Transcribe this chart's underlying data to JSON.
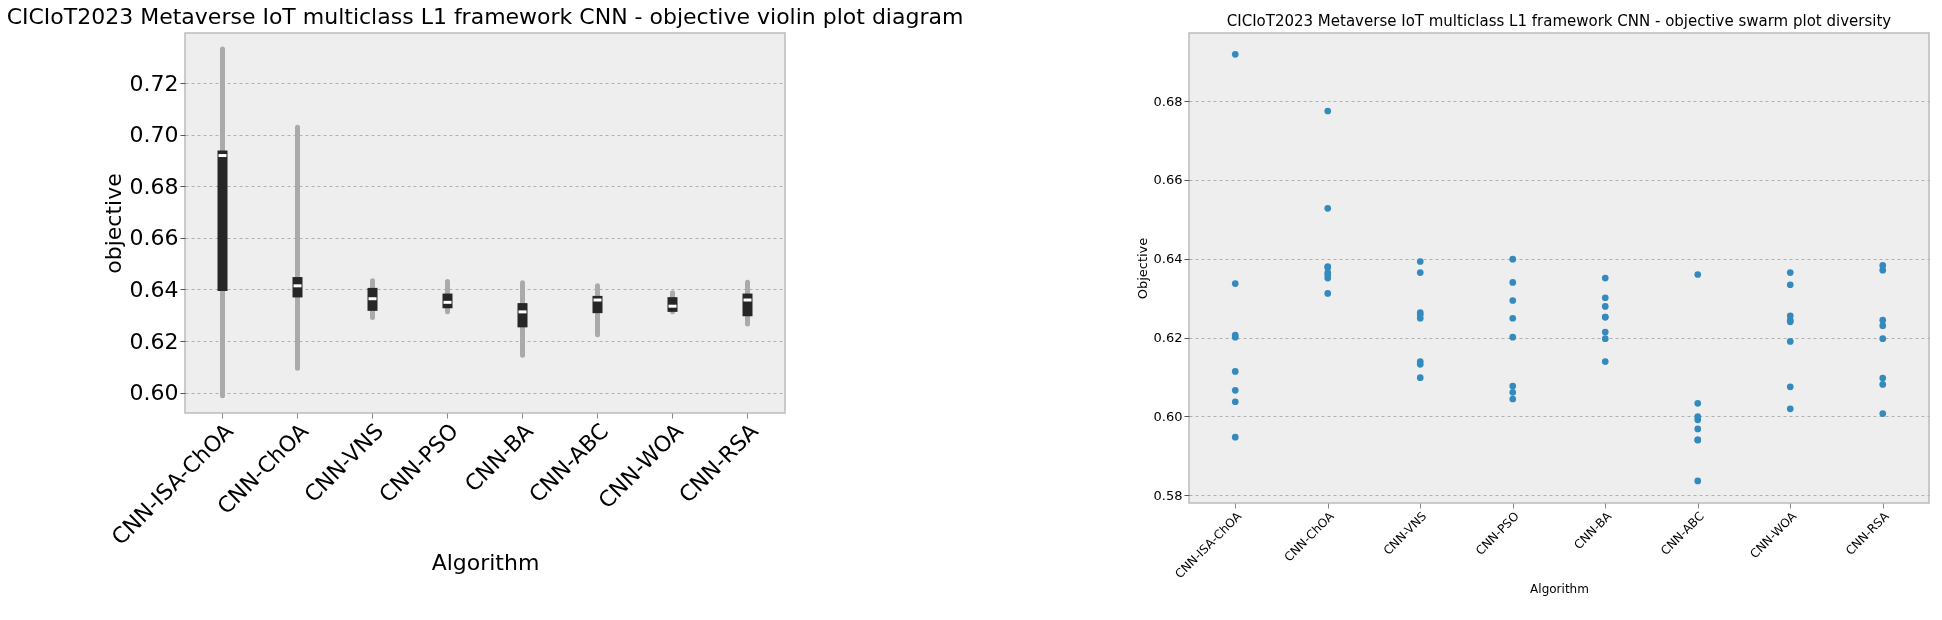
{
  "chart_data": [
    {
      "type": "box",
      "title": "CICIoT2023 Metaverse IoT multiclass L1 framework CNN - objective violin plot diagram",
      "xlabel": "Algorithm",
      "ylabel": "objective",
      "categories": [
        "CNN-ISA-ChOA",
        "CNN-ChOA",
        "CNN-VNS",
        "CNN-PSO",
        "CNN-BA",
        "CNN-ABC",
        "CNN-WOA",
        "CNN-RSA"
      ],
      "boxes": [
        {
          "low": 0.5988,
          "q1": 0.6394,
          "median": 0.6919,
          "q3": 0.6939,
          "high": 0.7332
        },
        {
          "low": 0.6094,
          "q1": 0.6369,
          "median": 0.6414,
          "q3": 0.6448,
          "high": 0.7029
        },
        {
          "low": 0.6291,
          "q1": 0.6317,
          "median": 0.6364,
          "q3": 0.6406,
          "high": 0.6434
        },
        {
          "low": 0.6313,
          "q1": 0.6327,
          "median": 0.635,
          "q3": 0.6384,
          "high": 0.6431
        },
        {
          "low": 0.6145,
          "q1": 0.6253,
          "median": 0.6313,
          "q3": 0.6347,
          "high": 0.6426
        },
        {
          "low": 0.6224,
          "q1": 0.6308,
          "median": 0.6359,
          "q3": 0.6375,
          "high": 0.6414
        },
        {
          "low": 0.6313,
          "q1": 0.6313,
          "median": 0.6335,
          "q3": 0.637,
          "high": 0.6387
        },
        {
          "low": 0.6266,
          "q1": 0.6296,
          "median": 0.6359,
          "q3": 0.6384,
          "high": 0.6428
        }
      ],
      "ylim": [
        0.5921,
        0.7394
      ],
      "yticks": [
        {
          "value": 0.6,
          "label": "0.60"
        },
        {
          "value": 0.62,
          "label": "0.62"
        },
        {
          "value": 0.64,
          "label": "0.64"
        },
        {
          "value": 0.66,
          "label": "0.66"
        },
        {
          "value": 0.68,
          "label": "0.68"
        },
        {
          "value": 0.7,
          "label": "0.70"
        },
        {
          "value": 0.72,
          "label": "0.72"
        }
      ],
      "grid": "y"
    },
    {
      "type": "scatter",
      "title": "CICIoT2023 Metaverse IoT multiclass L1 framework CNN -  objective swarm plot diversity",
      "xlabel": "Algorithm",
      "ylabel": "Objective",
      "categories": [
        "CNN-ISA-ChOA",
        "CNN-ChOA",
        "CNN-VNS",
        "CNN-PSO",
        "CNN-BA",
        "CNN-ABC",
        "CNN-WOA",
        "CNN-RSA"
      ],
      "series": [
        {
          "color": "#348abd",
          "x": [
            "CNN-ISA-ChOA",
            "CNN-ISA-ChOA",
            "CNN-ISA-ChOA",
            "CNN-ISA-ChOA",
            "CNN-ISA-ChOA",
            "CNN-ISA-ChOA",
            "CNN-ISA-ChOA",
            "CNN-ISA-ChOA",
            "CNN-ChOA",
            "CNN-ChOA",
            "CNN-ChOA",
            "CNN-ChOA",
            "CNN-ChOA",
            "CNN-ChOA",
            "CNN-ChOA",
            "CNN-ChOA",
            "CNN-VNS",
            "CNN-VNS",
            "CNN-VNS",
            "CNN-VNS",
            "CNN-VNS",
            "CNN-VNS",
            "CNN-VNS",
            "CNN-VNS",
            "CNN-PSO",
            "CNN-PSO",
            "CNN-PSO",
            "CNN-PSO",
            "CNN-PSO",
            "CNN-PSO",
            "CNN-PSO",
            "CNN-PSO",
            "CNN-BA",
            "CNN-BA",
            "CNN-BA",
            "CNN-BA",
            "CNN-BA",
            "CNN-BA",
            "CNN-BA",
            "CNN-BA",
            "CNN-ABC",
            "CNN-ABC",
            "CNN-ABC",
            "CNN-ABC",
            "CNN-ABC",
            "CNN-ABC",
            "CNN-ABC",
            "CNN-ABC",
            "CNN-WOA",
            "CNN-WOA",
            "CNN-WOA",
            "CNN-WOA",
            "CNN-WOA",
            "CNN-WOA",
            "CNN-WOA",
            "CNN-WOA",
            "CNN-RSA",
            "CNN-RSA",
            "CNN-RSA",
            "CNN-RSA",
            "CNN-RSA",
            "CNN-RSA",
            "CNN-RSA",
            "CNN-RSA"
          ],
          "values": [
            0.6919,
            0.6337,
            0.6206,
            0.6201,
            0.6114,
            0.6066,
            0.6037,
            0.5947,
            0.6775,
            0.6528,
            0.638,
            0.6378,
            0.6365,
            0.6359,
            0.6351,
            0.6312,
            0.6393,
            0.6365,
            0.6263,
            0.6258,
            0.6249,
            0.6139,
            0.6132,
            0.6098,
            0.6399,
            0.634,
            0.6294,
            0.6249,
            0.6201,
            0.6077,
            0.6061,
            0.6044,
            0.6351,
            0.6301,
            0.6279,
            0.6252,
            0.6252,
            0.6214,
            0.6197,
            0.6139,
            0.636,
            0.6033,
            0.5999,
            0.5991,
            0.5968,
            0.594,
            0.594,
            0.5836,
            0.6365,
            0.6334,
            0.6255,
            0.6244,
            0.624,
            0.619,
            0.6075,
            0.6019,
            0.6383,
            0.6371,
            0.6244,
            0.623,
            0.6197,
            0.6097,
            0.6081,
            0.6007
          ]
        }
      ],
      "ylim": [
        0.578,
        0.6973
      ],
      "yticks": [
        {
          "value": 0.58,
          "label": "0.58"
        },
        {
          "value": 0.6,
          "label": "0.60"
        },
        {
          "value": 0.62,
          "label": "0.62"
        },
        {
          "value": 0.64,
          "label": "0.64"
        },
        {
          "value": 0.66,
          "label": "0.66"
        },
        {
          "value": 0.68,
          "label": "0.68"
        }
      ],
      "grid": "y",
      "marker": "circle"
    }
  ]
}
